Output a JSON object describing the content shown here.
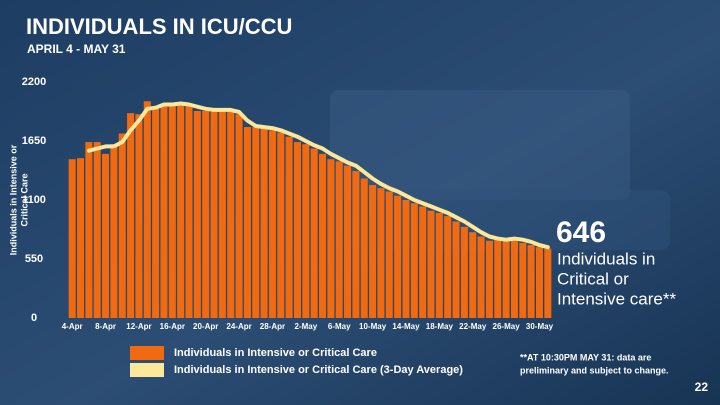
{
  "chart_data": {
    "type": "bar",
    "title": "INDIVIDUALS IN ICU/CCU",
    "subtitle": "APRIL 4 - MAY 31",
    "y_label": [
      "Individuals in Intensive or",
      "Critical Care"
    ],
    "categories": [
      "4-Apr",
      null,
      null,
      null,
      "8-Apr",
      null,
      null,
      null,
      "12-Apr",
      null,
      null,
      null,
      "16-Apr",
      null,
      null,
      null,
      "20-Apr",
      null,
      null,
      null,
      "24-Apr",
      null,
      null,
      null,
      "28-Apr",
      null,
      null,
      null,
      "2-May",
      null,
      null,
      null,
      "6-May",
      null,
      null,
      null,
      "10-May",
      null,
      null,
      null,
      "14-May",
      null,
      null,
      null,
      "18-May",
      null,
      null,
      null,
      "22-May",
      null,
      null,
      null,
      "26-May",
      null,
      null,
      null,
      "30-May",
      null
    ],
    "series": [
      {
        "name": "Individuals in Intensive or Critical Care",
        "color": "#f26a10",
        "values": [
          1480,
          1490,
          1640,
          1640,
          1530,
          1620,
          1720,
          1910,
          1900,
          2020,
          1950,
          1990,
          1990,
          2000,
          1990,
          1930,
          1930,
          1930,
          1930,
          1930,
          1900,
          1780,
          1780,
          1780,
          1750,
          1730,
          1690,
          1640,
          1620,
          1580,
          1530,
          1480,
          1460,
          1420,
          1370,
          1300,
          1240,
          1210,
          1180,
          1140,
          1100,
          1070,
          1040,
          1000,
          980,
          950,
          900,
          850,
          800,
          760,
          720,
          730,
          740,
          740,
          700,
          680,
          660,
          646
        ]
      },
      {
        "name": "Individuals in Intensive or Critical Care (3-Day Average)",
        "color": "#fbe89a",
        "type": "line",
        "values": [
          null,
          null,
          1560,
          1580,
          1600,
          1600,
          1640,
          1750,
          1840,
          1950,
          1960,
          1990,
          1990,
          2000,
          1990,
          1970,
          1950,
          1940,
          1940,
          1940,
          1920,
          1840,
          1790,
          1780,
          1770,
          1750,
          1720,
          1690,
          1650,
          1610,
          1580,
          1530,
          1490,
          1450,
          1420,
          1360,
          1300,
          1250,
          1210,
          1180,
          1140,
          1100,
          1070,
          1040,
          1010,
          980,
          940,
          900,
          850,
          800,
          760,
          740,
          730,
          740,
          730,
          710,
          680,
          660
        ]
      }
    ],
    "ylim": [
      0,
      2200
    ],
    "yticks": [
      0,
      550,
      1100,
      1650,
      2200
    ],
    "grid": false,
    "callout_value": 646,
    "callout_text": [
      "Individuals in",
      "Critical or",
      "Intensive care**"
    ],
    "footnote": [
      "**AT 10:30PM MAY 31: data are",
      "preliminary and subject to change."
    ],
    "page_number": 22
  }
}
